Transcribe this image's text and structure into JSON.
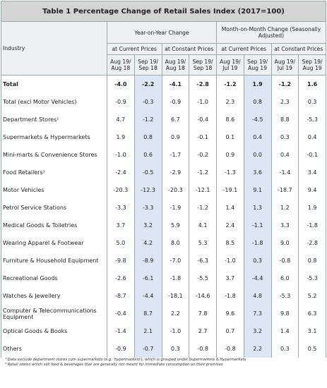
{
  "title": "Table 1   Percentage Change of Retail Sales Index (2017=100)",
  "header": {
    "industry": "Industry",
    "groups": [
      "Year-on-Year Change",
      "Month-on-Month Change (Seasonally Adjusted)"
    ],
    "prices": [
      "at Current Prices",
      "at Constant Prices",
      "at Current Prices",
      "at Constant Prices"
    ],
    "periods": [
      "Aug 19/ Aug 18",
      "Sep 19/ Sep 18",
      "Aug 19/ Aug 18",
      "Sep 19/ Sep 18",
      "Aug 19/ Jul 19",
      "Sep 19/ Aug 19",
      "Aug 19/ Jul 19",
      "Sep 19/ Aug 19"
    ]
  },
  "table": {
    "rows": [
      [
        "Total",
        "-4.0",
        "-2.2",
        "-4.1",
        "-2.8",
        "-1.2",
        "1.9",
        "-1.2",
        "1.6"
      ],
      [
        "Total (excl Motor Vehicles)",
        "-0.9",
        "-0.3",
        "-0.9",
        "-1.0",
        "2.3",
        "0.8",
        "2.3",
        "0.3"
      ],
      [
        "Department Stores¹",
        "4.7",
        "-1.2",
        "6.7",
        "-0.4",
        "8.6",
        "-4.5",
        "8.8",
        "-5.3"
      ],
      [
        "Supermarkets & Hypermarkets",
        "1.9",
        "0.8",
        "0.9",
        "-0.1",
        "0.1",
        "0.4",
        "0.3",
        "0.4"
      ],
      [
        "Mini-marts & Convenience Stores",
        "-1.0",
        "0.6",
        "-1.7",
        "-0.2",
        "0.9",
        "0.0",
        "0.4",
        "-0.1"
      ],
      [
        "Food Retailers²",
        "-2.4",
        "-0.5",
        "-2.9",
        "-1.2",
        "-1.3",
        "3.6",
        "-1.4",
        "3.4"
      ],
      [
        "Motor Vehicles",
        "-20.3",
        "-12.3",
        "-20.3",
        "-12.1",
        "-19.1",
        "9.1",
        "-18.7",
        "9.4"
      ],
      [
        "Petrol Service Stations",
        "-3.3",
        "-3.3",
        "-1.9",
        "-1.2",
        "1.4",
        "1.3",
        "1.2",
        "1.9"
      ],
      [
        "Medical Goods & Toiletries",
        "3.7",
        "3.2",
        "5.9",
        "4.1",
        "2.4",
        "-1.1",
        "3.3",
        "-1.8"
      ],
      [
        "Wearing Apparel & Footwear",
        "5.0",
        "4.2",
        "8.0",
        "5.3",
        "8.5",
        "-1.8",
        "9.0",
        "-2.8"
      ],
      [
        "Furniture & Household Equipment",
        "-9.8",
        "-8.9",
        "-7.0",
        "-6.3",
        "-1.0",
        "0.3",
        "-0.8",
        "0.8"
      ],
      [
        "Recreational Goods",
        "-2.6",
        "-6.1",
        "-1.8",
        "-5.5",
        "3.7",
        "-4.4",
        "6.0",
        "-5.3"
      ],
      [
        "Watches & Jewellery",
        "-8.7",
        "-4.4",
        "-18.1",
        "-14.6",
        "-1.8",
        "4.8",
        "-5.3",
        "5.2"
      ],
      [
        "Computer & Telecommunications Equipment",
        "-0.4",
        "8.7",
        "2.2",
        "7.8",
        "9.6",
        "7.3",
        "9.8",
        "6.3"
      ],
      [
        "Optical Goods & Books",
        "-1.4",
        "2.1",
        "-1.0",
        "2.7",
        "0.7",
        "3.2",
        "1.4",
        "3.1"
      ],
      [
        "Others",
        "-0.9",
        "-0.7",
        "0.3",
        "-0.8",
        "-0.8",
        "2.2",
        "0.3",
        "0.5"
      ]
    ]
  },
  "footnotes": [
    "¹ Data exclude department stores cum supermarkets (e.g. 'hypermarkets'), which is grouped under Supermarkets & Hypermarkets",
    "² Retail stores which sell food & beverages that are generally not meant for immediate consumption on their premises"
  ]
}
